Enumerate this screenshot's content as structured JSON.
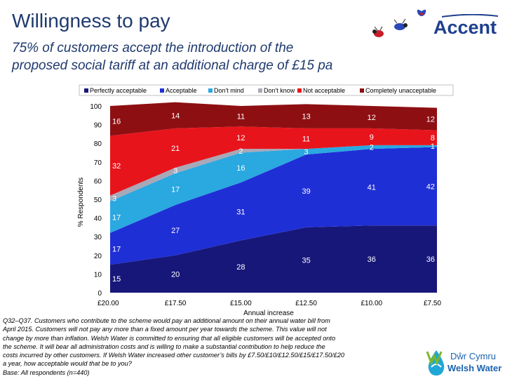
{
  "header": {
    "title": "Willingness to pay",
    "subtitle_line1": "75% of customers accept the introduction of the",
    "subtitle_line2": "proposed social tariff at an additional charge of £15 pa"
  },
  "logos": {
    "brand": "Accent",
    "partner_line1": "Dŵr Cymru",
    "partner_line2": "Welsh Water"
  },
  "footnote": {
    "lines": [
      "Q32–Q37. Customers who contribute to the scheme would pay an additional amount on their annual water bill from",
      "April 2015. Customers will not pay any more than a fixed amount per year towards the scheme. This value will not",
      "change by more than inflation. Welsh Water is committed to ensuring that all eligible customers will be accepted onto",
      "the scheme. It will bear all administration costs and is willing to make a substantial contribution to help reduce the",
      "costs incurred by other customers.  If Welsh Water increased other customer’s bills by £7.50/£10/£12.50/£15/£17.50/£20",
      "a year, how acceptable would that be to you?",
      "Base: All respondents (n=440)"
    ]
  },
  "chart_data": {
    "type": "area",
    "stacked": true,
    "categories": [
      "£20.00",
      "£17.50",
      "£15.00",
      "£12.50",
      "£10.00",
      "£7.50"
    ],
    "xlabel": "Annual increase",
    "ylabel": "% Respondents",
    "ylim": [
      0,
      100
    ],
    "yticks": [
      "0",
      "10",
      "20",
      "30",
      "40",
      "50",
      "60",
      "70",
      "80",
      "90",
      "100"
    ],
    "legend_position": "top",
    "series": [
      {
        "name": "Perfectly acceptable",
        "color": "#17177a",
        "values": [
          15,
          20,
          28,
          35,
          36,
          36
        ],
        "labels": [
          "15",
          "20",
          "28",
          "35",
          "36",
          "36"
        ]
      },
      {
        "name": "Acceptable",
        "color": "#1f2fd6",
        "values": [
          17,
          27,
          31,
          39,
          41,
          42
        ],
        "labels": [
          "17",
          "27",
          "31",
          "39",
          "41",
          "42"
        ]
      },
      {
        "name": "Don't mind",
        "color": "#2aa8e0",
        "values": [
          17,
          17,
          16,
          3,
          2,
          1
        ],
        "labels": [
          "17",
          "17",
          "16",
          "3",
          "2",
          "1"
        ]
      },
      {
        "name": "Don't know",
        "color": "#a8a8b8",
        "values": [
          3,
          3,
          2,
          0,
          0,
          0
        ],
        "labels": [
          "3",
          "3",
          "2",
          "",
          "",
          ""
        ]
      },
      {
        "name": "Not acceptable",
        "color": "#e8141c",
        "values": [
          32,
          21,
          12,
          11,
          9,
          8
        ],
        "labels": [
          "32",
          "21",
          "12",
          "11",
          "9",
          "8"
        ]
      },
      {
        "name": "Completely unacceptable",
        "color": "#8e0f12",
        "values": [
          16,
          14,
          11,
          13,
          12,
          12
        ],
        "labels": [
          "16",
          "14",
          "11",
          "13",
          "12",
          "12"
        ]
      }
    ]
  }
}
